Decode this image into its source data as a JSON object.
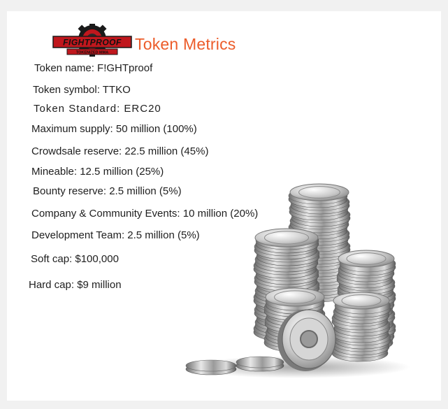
{
  "header": {
    "logo_text": "FIGHTPROOF",
    "logo_subtext": "TOKENIZED MMA",
    "title": "Token Metrics"
  },
  "metrics": [
    "Token name: F!GHTproof",
    "Token symbol: TTKO",
    "Token Standard: ERC20",
    "Maximum supply:   50 million (100%)",
    "Crowdsale reserve:  22.5 million (45%)",
    "Mineable:  12.5 million (25%)",
    "Bounty reserve:  2.5 million (5%)",
    "Company & Community Events:  10 million (20%)",
    "Development Team:  2.5 million (5%)",
    "Soft cap: $100,000",
    "Hard cap: $9 million"
  ],
  "colors": {
    "title": "#ec5c2a",
    "logo_red": "#c0171d",
    "text": "#1e1e1e",
    "coin_silver": "#c4c4c4"
  },
  "icons": [
    "fightproof-logo",
    "silver-coins-stack"
  ]
}
